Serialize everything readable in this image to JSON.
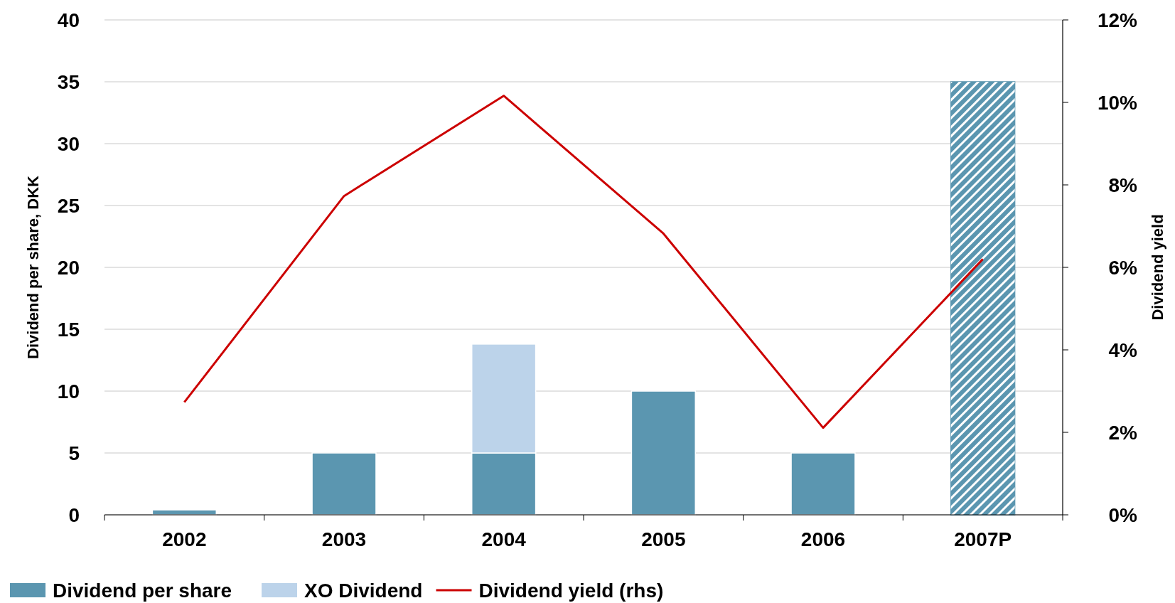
{
  "chart_data": {
    "type": "bar",
    "stacked": true,
    "categories": [
      "2002",
      "2003",
      "2004",
      "2005",
      "2006",
      "2007P"
    ],
    "ylabel": "Dividend per share, DKK",
    "y2label": "Dividend yield",
    "ylim": [
      0,
      40
    ],
    "yticks": [
      0,
      5,
      10,
      15,
      20,
      25,
      30,
      35,
      40
    ],
    "y2lim": [
      0,
      12
    ],
    "y2ticks": [
      {
        "value": 0,
        "label": "0%"
      },
      {
        "value": 2,
        "label": "2%"
      },
      {
        "value": 4,
        "label": "4%"
      },
      {
        "value": 6,
        "label": "6%"
      },
      {
        "value": 8,
        "label": "8%"
      },
      {
        "value": 10,
        "label": "10%"
      },
      {
        "value": 12,
        "label": "12%"
      }
    ],
    "grid": "y",
    "legend": "bottom",
    "series": [
      {
        "name": "Dividend per share",
        "color": "#5b96b0",
        "values": [
          0.4,
          5,
          5,
          10,
          5,
          null
        ]
      },
      {
        "name": "XO Dividend",
        "color": "#bcd3ea",
        "values": [
          null,
          null,
          8.8,
          null,
          null,
          null
        ]
      },
      {
        "color": "#5b96b0",
        "values": [
          null,
          null,
          null,
          null,
          null,
          35
        ]
      },
      {
        "name": "Dividend yield (rhs)",
        "type": "line",
        "axis": "y2",
        "color": "#cc0000",
        "values": [
          2.73,
          7.73,
          10.16,
          6.82,
          2.11,
          6.2
        ]
      }
    ]
  }
}
